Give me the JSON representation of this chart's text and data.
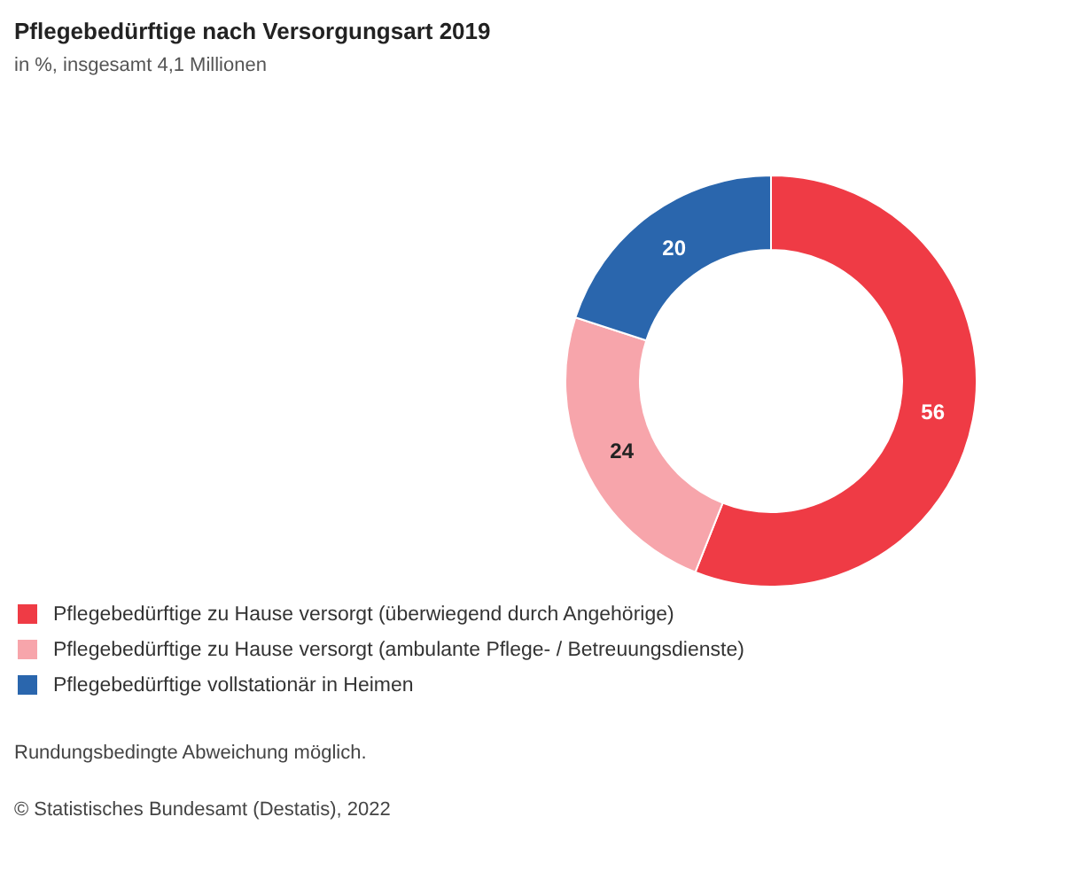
{
  "chart_data": {
    "type": "donut",
    "title": "Pflegebedürftige nach Versorgungsart 2019",
    "subtitle": "in %, insgesamt 4,1 Millionen",
    "categories": [
      "Pflegebedürftige zu Hause versorgt (überwiegend durch Angehörige)",
      "Pflegebedürftige zu Hause versorgt (ambulante Pflege- / Betreuungsdienste)",
      "Pflegebedürftige vollstationär in Heimen"
    ],
    "values": [
      56,
      24,
      20
    ],
    "colors": [
      "#ef3b45",
      "#f7a5ab",
      "#2a66ad"
    ],
    "data_labels": true,
    "legend": "bottom",
    "annotations": [
      "Rundungsbedingte Abweichung möglich.",
      "© Statistisches Bundesamt (Destatis), 2022"
    ]
  }
}
